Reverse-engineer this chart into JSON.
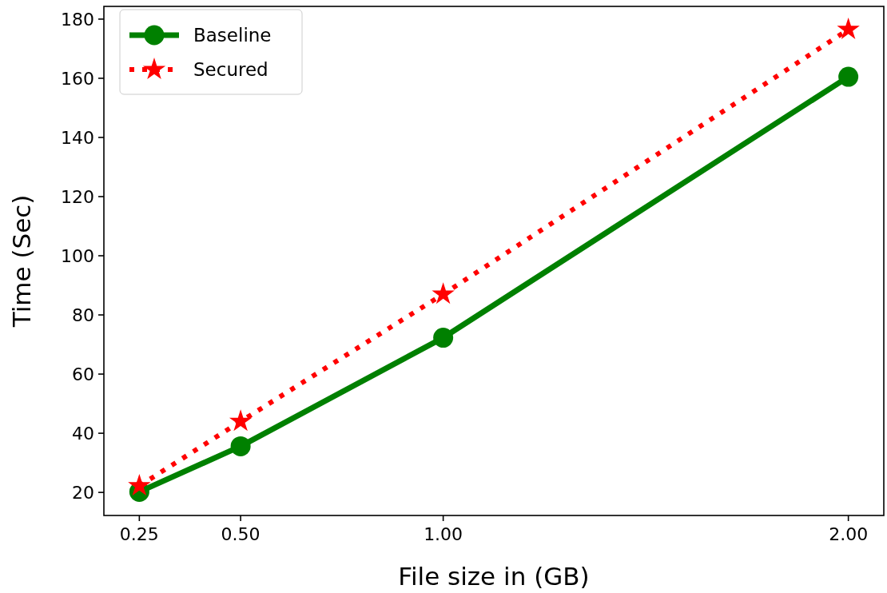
{
  "chart_data": {
    "type": "line",
    "xlabel": "File size in (GB)",
    "ylabel": "Time (Sec)",
    "x": [
      0.25,
      0.5,
      1.0,
      2.0
    ],
    "series": [
      {
        "name": "Baseline",
        "color": "#008000",
        "values": [
          20.2,
          35.6,
          72.3,
          160.5
        ],
        "marker": "circle",
        "line_style": "solid"
      },
      {
        "name": "Secured",
        "color": "#ff0000",
        "values": [
          22.2,
          44,
          87,
          176.5
        ],
        "marker": "star",
        "line_style": "dotted"
      }
    ],
    "xlim": [
      0.1625,
      2.0875
    ],
    "xticks": [
      {
        "value": 0.25,
        "label": "0.25"
      },
      {
        "value": 0.5,
        "label": "0.50"
      },
      {
        "value": 1.0,
        "label": "1.00"
      },
      {
        "value": 2.0,
        "label": "2.00"
      }
    ],
    "ylim": [
      12.2,
      184.3
    ],
    "yticks": [
      20,
      40,
      60,
      80,
      100,
      120,
      140,
      160,
      180
    ],
    "grid": false,
    "legend": "top left"
  }
}
